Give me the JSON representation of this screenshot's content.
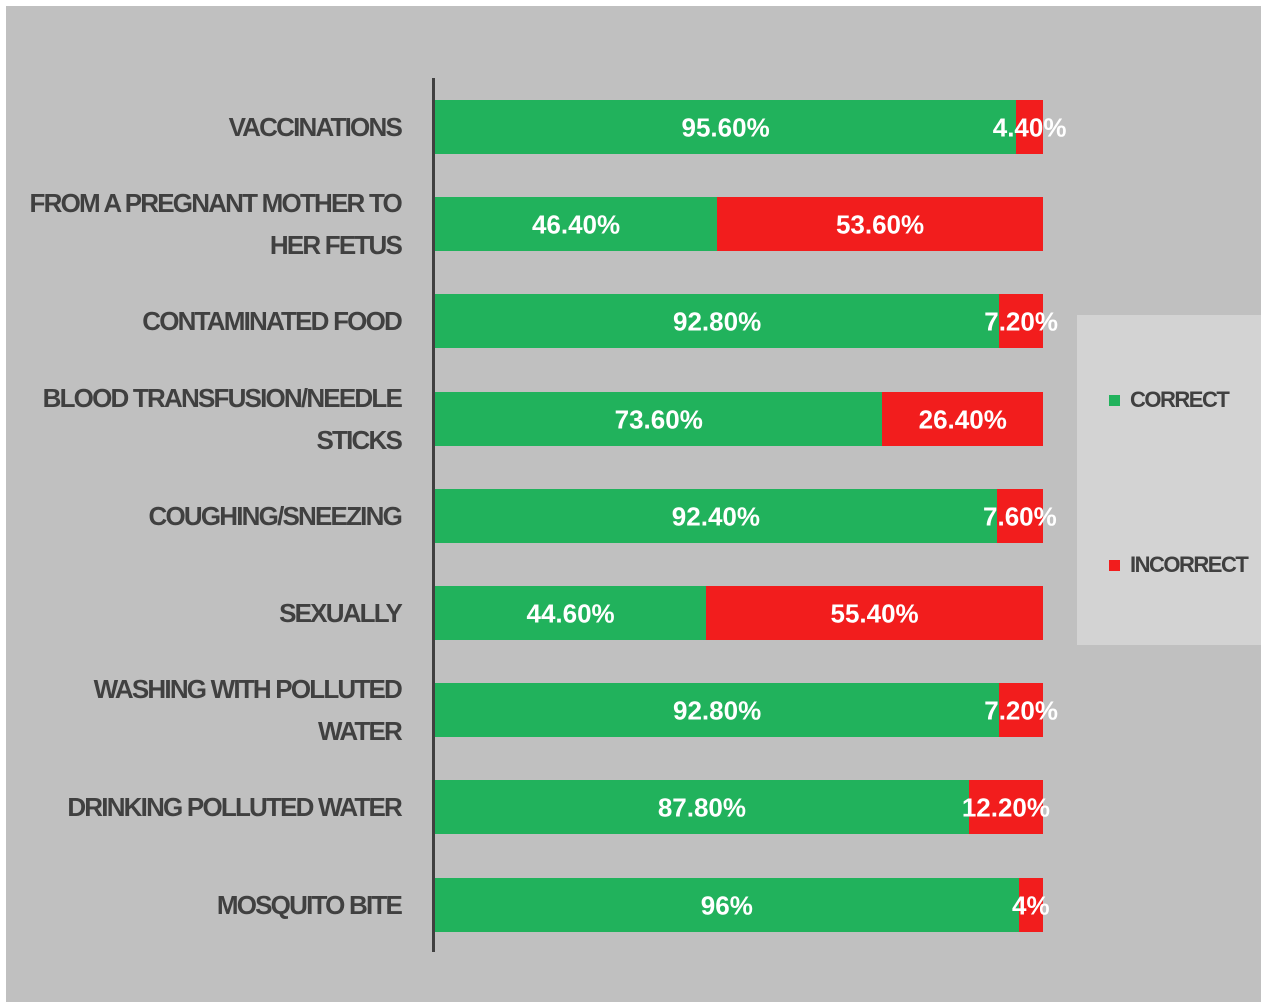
{
  "chart_data": {
    "type": "stacked-bar",
    "orientation": "horizontal",
    "categories": [
      "VACCINATIONS",
      "FROM A PREGNANT MOTHER TO HER FETUS",
      "CONTAMINATED FOOD",
      "BLOOD TRANSFUSION/NEEDLE STICKS",
      "COUGHING/SNEEZING",
      "SEXUALLY",
      "WASHING WITH POLLUTED WATER",
      "DRINKING POLLUTED WATER",
      "MOSQUITO BITE"
    ],
    "series": [
      {
        "name": "CORRECT",
        "color": "#21b25c",
        "values": [
          95.6,
          46.4,
          92.8,
          73.6,
          92.4,
          44.6,
          92.8,
          87.8,
          96
        ],
        "value_labels": [
          "95.60%",
          "46.40%",
          "92.80%",
          "73.60%",
          "92.40%",
          "44.60%",
          "92.80%",
          "87.80%",
          "96%"
        ]
      },
      {
        "name": "INCORRECT",
        "color": "#f21d1d",
        "values": [
          4.4,
          53.6,
          7.2,
          26.4,
          7.6,
          55.4,
          7.2,
          12.2,
          4
        ],
        "value_labels": [
          "4.40%",
          "53.60%",
          "7.20%",
          "26.40%",
          "7.60%",
          "55.40%",
          "7.20%",
          "12.20%",
          "4%"
        ]
      }
    ],
    "xlim": [
      0,
      100
    ],
    "legend": "right"
  }
}
